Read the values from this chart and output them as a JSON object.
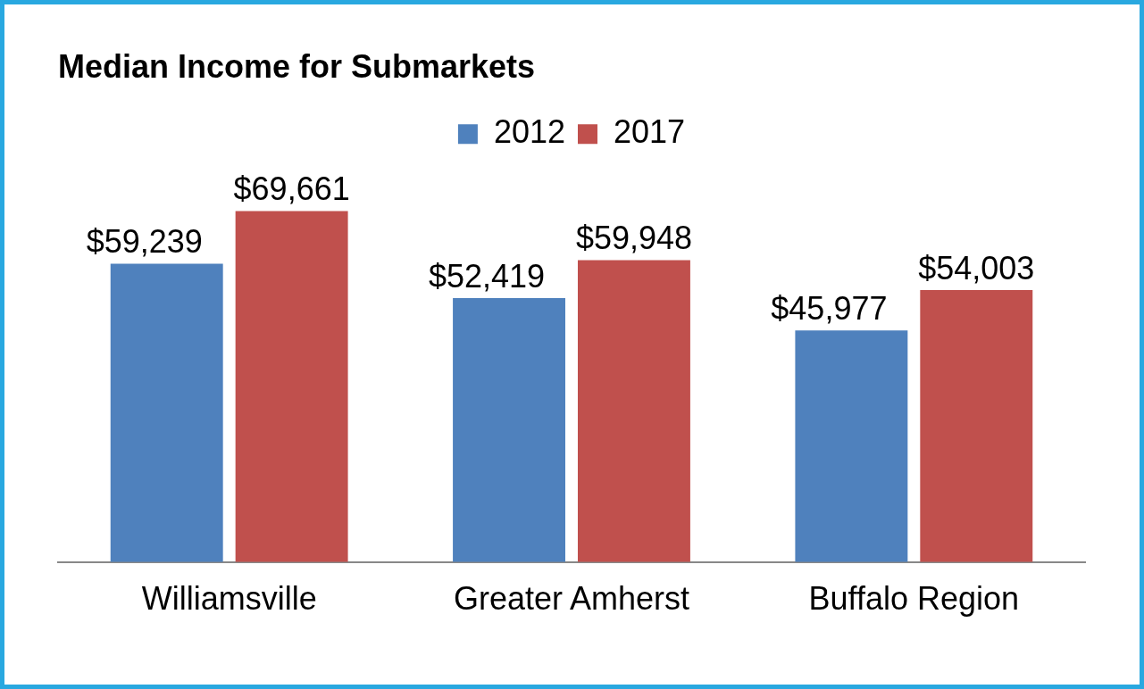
{
  "chart_data": {
    "type": "bar",
    "title": "Median Income for Submarkets",
    "categories": [
      "Williamsville",
      "Greater Amherst",
      "Buffalo Region"
    ],
    "series": [
      {
        "name": "2012",
        "color": "#4f81bd",
        "values": [
          59239,
          52419,
          45977
        ],
        "value_labels": [
          "$59,239",
          "$52,419",
          "$45,977"
        ]
      },
      {
        "name": "2017",
        "color": "#c0504d",
        "values": [
          69661,
          59948,
          54003
        ],
        "value_labels": [
          "$69,661",
          "$59,948",
          "$54,003"
        ]
      }
    ],
    "legend": "top",
    "grid": false
  }
}
